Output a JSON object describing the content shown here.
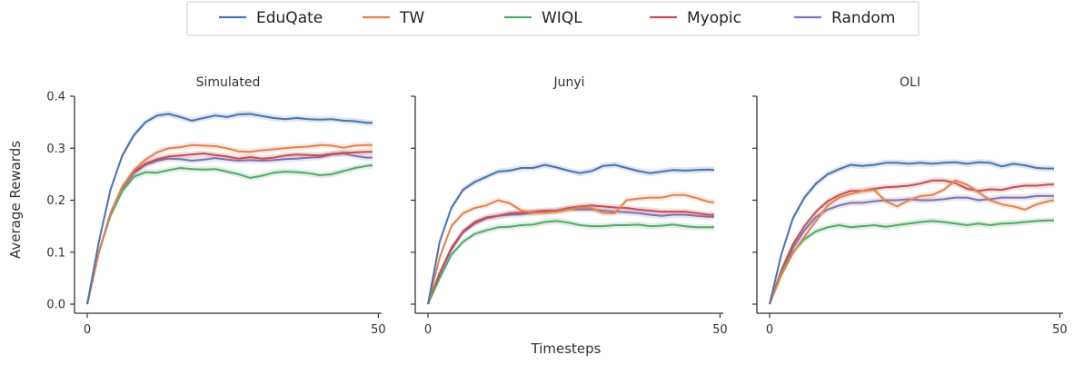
{
  "legend": {
    "entries": [
      {
        "name": "EduQate",
        "color": "#4C72B0"
      },
      {
        "name": "TW",
        "color": "#DD8452"
      },
      {
        "name": "WIQL",
        "color": "#55A868"
      },
      {
        "name": "Myopic",
        "color": "#C44E52"
      },
      {
        "name": "Random",
        "color": "#8172B3"
      }
    ],
    "placement": "top-center"
  },
  "shared": {
    "xlabel": "Timesteps",
    "ylabel": "Average Rewards"
  },
  "chart_data": [
    {
      "type": "line",
      "title": "Simulated",
      "xlim": [
        0,
        49
      ],
      "ylim": [
        0.0,
        0.4
      ],
      "yticks": [
        "0.0",
        "0.1",
        "0.2",
        "0.3",
        "0.4"
      ],
      "xticks": [
        "0",
        "50"
      ],
      "x": [
        0,
        2,
        4,
        6,
        8,
        10,
        12,
        14,
        16,
        18,
        20,
        22,
        24,
        26,
        28,
        30,
        32,
        34,
        36,
        38,
        40,
        42,
        44,
        46,
        48,
        49
      ],
      "series": [
        {
          "name": "EduQate",
          "values": [
            0.0,
            0.12,
            0.22,
            0.285,
            0.325,
            0.35,
            0.363,
            0.366,
            0.36,
            0.353,
            0.358,
            0.363,
            0.36,
            0.365,
            0.366,
            0.362,
            0.358,
            0.356,
            0.358,
            0.356,
            0.355,
            0.356,
            0.353,
            0.352,
            0.349,
            0.349
          ]
        },
        {
          "name": "TW",
          "values": [
            0.0,
            0.1,
            0.175,
            0.225,
            0.258,
            0.278,
            0.292,
            0.3,
            0.302,
            0.306,
            0.305,
            0.304,
            0.3,
            0.294,
            0.293,
            0.296,
            0.298,
            0.3,
            0.302,
            0.303,
            0.306,
            0.305,
            0.301,
            0.305,
            0.306,
            0.306
          ]
        },
        {
          "name": "WIQL",
          "values": [
            0.0,
            0.1,
            0.17,
            0.217,
            0.245,
            0.254,
            0.253,
            0.258,
            0.262,
            0.26,
            0.259,
            0.26,
            0.255,
            0.25,
            0.243,
            0.247,
            0.253,
            0.255,
            0.254,
            0.252,
            0.248,
            0.25,
            0.256,
            0.262,
            0.266,
            0.267
          ]
        },
        {
          "name": "Myopic",
          "values": [
            0.0,
            0.1,
            0.175,
            0.225,
            0.255,
            0.27,
            0.279,
            0.284,
            0.286,
            0.288,
            0.29,
            0.287,
            0.284,
            0.28,
            0.283,
            0.28,
            0.282,
            0.286,
            0.288,
            0.287,
            0.286,
            0.289,
            0.291,
            0.292,
            0.293,
            0.293
          ]
        },
        {
          "name": "Random",
          "values": [
            0.0,
            0.1,
            0.172,
            0.222,
            0.252,
            0.268,
            0.276,
            0.28,
            0.279,
            0.276,
            0.278,
            0.281,
            0.278,
            0.276,
            0.277,
            0.276,
            0.277,
            0.279,
            0.28,
            0.282,
            0.283,
            0.288,
            0.29,
            0.285,
            0.282,
            0.282
          ]
        }
      ]
    },
    {
      "type": "line",
      "title": "Junyi",
      "xlim": [
        0,
        49
      ],
      "ylim": [
        0.0,
        0.4
      ],
      "yticks": [
        "0.0",
        "0.1",
        "0.2",
        "0.3",
        "0.4"
      ],
      "xticks": [
        "0",
        "50"
      ],
      "x": [
        0,
        2,
        4,
        6,
        8,
        10,
        12,
        14,
        16,
        18,
        20,
        22,
        24,
        26,
        28,
        30,
        32,
        34,
        36,
        38,
        40,
        42,
        44,
        46,
        48,
        49
      ],
      "series": [
        {
          "name": "EduQate",
          "values": [
            0.0,
            0.12,
            0.185,
            0.22,
            0.235,
            0.245,
            0.255,
            0.257,
            0.262,
            0.262,
            0.268,
            0.263,
            0.257,
            0.252,
            0.256,
            0.266,
            0.268,
            0.262,
            0.256,
            0.252,
            0.255,
            0.258,
            0.257,
            0.258,
            0.259,
            0.258
          ]
        },
        {
          "name": "TW",
          "values": [
            0.0,
            0.09,
            0.15,
            0.175,
            0.185,
            0.19,
            0.2,
            0.194,
            0.18,
            0.176,
            0.176,
            0.178,
            0.182,
            0.186,
            0.185,
            0.175,
            0.175,
            0.2,
            0.203,
            0.205,
            0.205,
            0.21,
            0.21,
            0.204,
            0.197,
            0.196
          ]
        },
        {
          "name": "WIQL",
          "values": [
            0.0,
            0.05,
            0.095,
            0.12,
            0.135,
            0.142,
            0.148,
            0.149,
            0.152,
            0.153,
            0.158,
            0.16,
            0.157,
            0.152,
            0.15,
            0.15,
            0.152,
            0.152,
            0.153,
            0.15,
            0.151,
            0.153,
            0.15,
            0.148,
            0.148,
            0.148
          ]
        },
        {
          "name": "Myopic",
          "values": [
            0.0,
            0.06,
            0.108,
            0.14,
            0.158,
            0.167,
            0.17,
            0.175,
            0.176,
            0.178,
            0.18,
            0.18,
            0.185,
            0.188,
            0.19,
            0.188,
            0.186,
            0.185,
            0.182,
            0.18,
            0.178,
            0.178,
            0.178,
            0.175,
            0.172,
            0.172
          ]
        },
        {
          "name": "Random",
          "values": [
            0.0,
            0.058,
            0.105,
            0.138,
            0.155,
            0.165,
            0.17,
            0.172,
            0.173,
            0.176,
            0.178,
            0.18,
            0.183,
            0.182,
            0.182,
            0.18,
            0.178,
            0.177,
            0.175,
            0.172,
            0.17,
            0.172,
            0.172,
            0.17,
            0.168,
            0.168
          ]
        }
      ]
    },
    {
      "type": "line",
      "title": "OLI",
      "xlim": [
        0,
        49
      ],
      "ylim": [
        0.0,
        0.4
      ],
      "yticks": [
        "0.0",
        "0.1",
        "0.2",
        "0.3",
        "0.4"
      ],
      "xticks": [
        "0",
        "50"
      ],
      "x": [
        0,
        2,
        4,
        6,
        8,
        10,
        12,
        14,
        16,
        18,
        20,
        22,
        24,
        26,
        28,
        30,
        32,
        34,
        36,
        38,
        40,
        42,
        44,
        46,
        48,
        49
      ],
      "series": [
        {
          "name": "EduQate",
          "values": [
            0.0,
            0.095,
            0.165,
            0.205,
            0.232,
            0.25,
            0.26,
            0.268,
            0.266,
            0.268,
            0.272,
            0.272,
            0.27,
            0.272,
            0.27,
            0.272,
            0.273,
            0.27,
            0.273,
            0.272,
            0.265,
            0.27,
            0.267,
            0.262,
            0.261,
            0.261
          ]
        },
        {
          "name": "TW",
          "values": [
            0.0,
            0.055,
            0.098,
            0.13,
            0.16,
            0.19,
            0.205,
            0.212,
            0.218,
            0.22,
            0.198,
            0.188,
            0.2,
            0.208,
            0.21,
            0.22,
            0.238,
            0.23,
            0.215,
            0.2,
            0.192,
            0.188,
            0.182,
            0.192,
            0.198,
            0.2
          ]
        },
        {
          "name": "WIQL",
          "values": [
            0.0,
            0.06,
            0.1,
            0.125,
            0.14,
            0.148,
            0.152,
            0.148,
            0.15,
            0.152,
            0.149,
            0.152,
            0.155,
            0.158,
            0.16,
            0.158,
            0.155,
            0.152,
            0.155,
            0.152,
            0.155,
            0.156,
            0.158,
            0.16,
            0.161,
            0.161
          ]
        },
        {
          "name": "Myopic",
          "values": [
            0.0,
            0.065,
            0.115,
            0.15,
            0.178,
            0.198,
            0.21,
            0.218,
            0.218,
            0.222,
            0.225,
            0.226,
            0.228,
            0.232,
            0.238,
            0.238,
            0.233,
            0.222,
            0.218,
            0.221,
            0.22,
            0.225,
            0.228,
            0.228,
            0.23,
            0.23
          ]
        },
        {
          "name": "Random",
          "values": [
            0.0,
            0.06,
            0.108,
            0.142,
            0.168,
            0.182,
            0.19,
            0.195,
            0.195,
            0.198,
            0.2,
            0.2,
            0.202,
            0.2,
            0.2,
            0.202,
            0.205,
            0.205,
            0.2,
            0.202,
            0.205,
            0.205,
            0.205,
            0.208,
            0.208,
            0.208
          ]
        }
      ]
    }
  ]
}
